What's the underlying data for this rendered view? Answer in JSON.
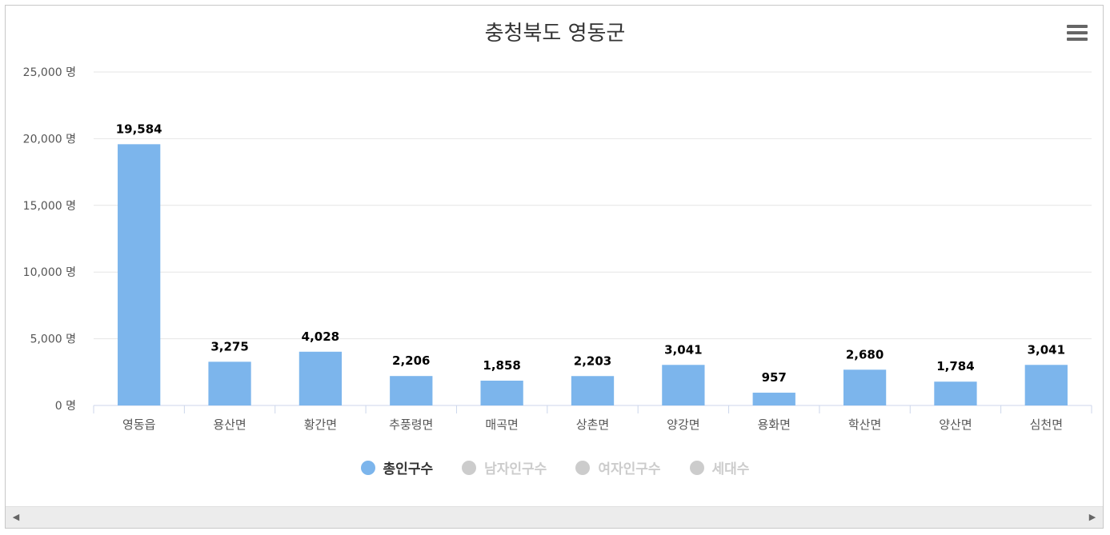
{
  "chart_data": {
    "type": "bar",
    "title": "충청북도 영동군",
    "categories": [
      "영동읍",
      "용산면",
      "황간면",
      "추풍령면",
      "매곡면",
      "상촌면",
      "양강면",
      "용화면",
      "학산면",
      "양산면",
      "심천면"
    ],
    "series": [
      {
        "name": "총인구수",
        "values": [
          19584,
          3275,
          4028,
          2206,
          1858,
          2203,
          3041,
          957,
          2680,
          1784,
          3041
        ],
        "data_labels": [
          "19,584",
          "3,275",
          "4,028",
          "2,206",
          "1,858",
          "2,203",
          "3,041",
          "957",
          "2,680",
          "1,784",
          "3,041"
        ],
        "color": "#7cb5ec",
        "visible": true
      }
    ],
    "ylim": [
      0,
      25000
    ],
    "yticks": [
      0,
      5000,
      10000,
      15000,
      20000,
      25000
    ],
    "ytick_labels": [
      "0 명",
      "5,000 명",
      "10,000 명",
      "15,000 명",
      "20,000 명",
      "25,000 명"
    ],
    "xlabel": "",
    "ylabel": "",
    "grid": true,
    "legend_position": "bottom-center"
  },
  "legend": [
    {
      "label": "총인구수",
      "color": "#7cb5ec",
      "active": true
    },
    {
      "label": "남자인구수",
      "color": "#cccccc",
      "active": false
    },
    {
      "label": "여자인구수",
      "color": "#cccccc",
      "active": false
    },
    {
      "label": "세대수",
      "color": "#cccccc",
      "active": false
    }
  ],
  "colors": {
    "active_text": "#333333",
    "inactive_text": "#cccccc",
    "grid": "#e6e6e6",
    "axis": "#ccd6eb"
  },
  "icons": {
    "menu": "hamburger-menu-icon",
    "scroll_left": "arrow-left-icon",
    "scroll_right": "arrow-right-icon"
  }
}
